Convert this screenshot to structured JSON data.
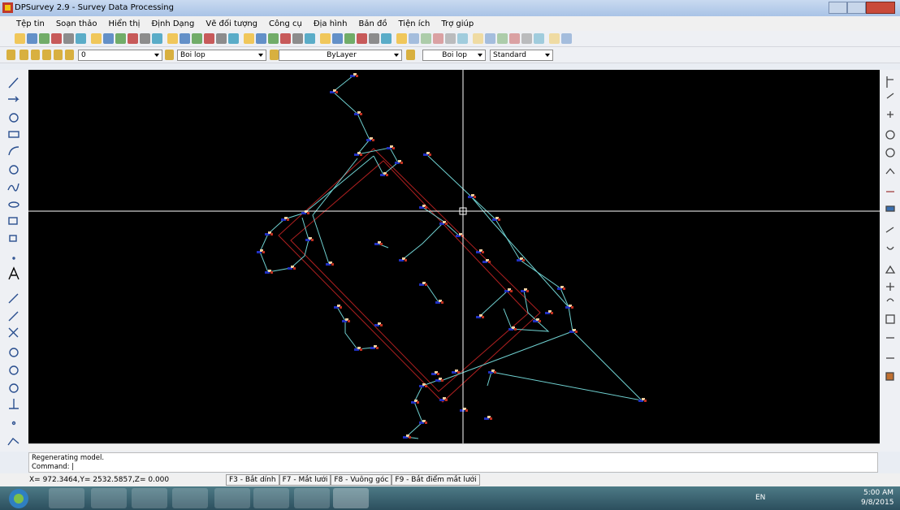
{
  "window": {
    "title": "DPSurvey 2.9 - Survey Data Processing"
  },
  "menu": [
    "Tệp tin",
    "Soạn thảo",
    "Hiển thị",
    "Định Dạng",
    "Vẽ đối tượng",
    "Công cụ",
    "Địa hình",
    "Bản đồ",
    "Tiện ích",
    "Trợ giúp"
  ],
  "toolbar": {
    "layer": "0",
    "color": "Boi lop",
    "linetype": "ByLayer",
    "lineweight": "Boi lop",
    "text_style": "Standard"
  },
  "command": {
    "lines": [
      "Regenerating model.",
      "Command: |"
    ]
  },
  "status": {
    "coordinates": "X= 972.3464,Y= 2532.5857,Z= 0.000",
    "buttons": [
      "F3 - Bắt dính",
      "F7 - Mắt lưới",
      "F8 - Vuông góc",
      "F9 - Bắt điểm mắt lưới"
    ]
  },
  "taskbar": {
    "language": "EN",
    "time": "5:00 AM",
    "date": "9/8/2015"
  }
}
